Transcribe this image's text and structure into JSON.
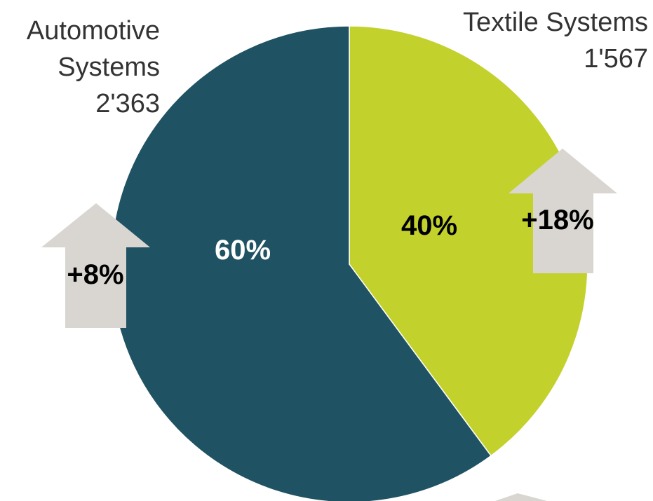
{
  "chart_data": {
    "type": "pie",
    "title": "",
    "slices": [
      {
        "key": "textile",
        "name_lines": [
          "Textile Systems"
        ],
        "value": 1567,
        "value_label": "1'567",
        "percent_label": "40%",
        "growth_label": "+18%",
        "color": "#c3d12c",
        "percent_color": "#000000"
      },
      {
        "key": "automotive",
        "name_lines": [
          "Automotive",
          "Systems"
        ],
        "value": 2363,
        "value_label": "2'363",
        "percent_label": "60%",
        "growth_label": "+8%",
        "color": "#1f5262",
        "percent_color": "#ffffff"
      }
    ],
    "start": "12 o'clock",
    "direction": "clockwise",
    "legend": "none"
  },
  "colors": {
    "arrow": "#d9d6d2",
    "background": "#ffffff",
    "text": "#333333"
  }
}
